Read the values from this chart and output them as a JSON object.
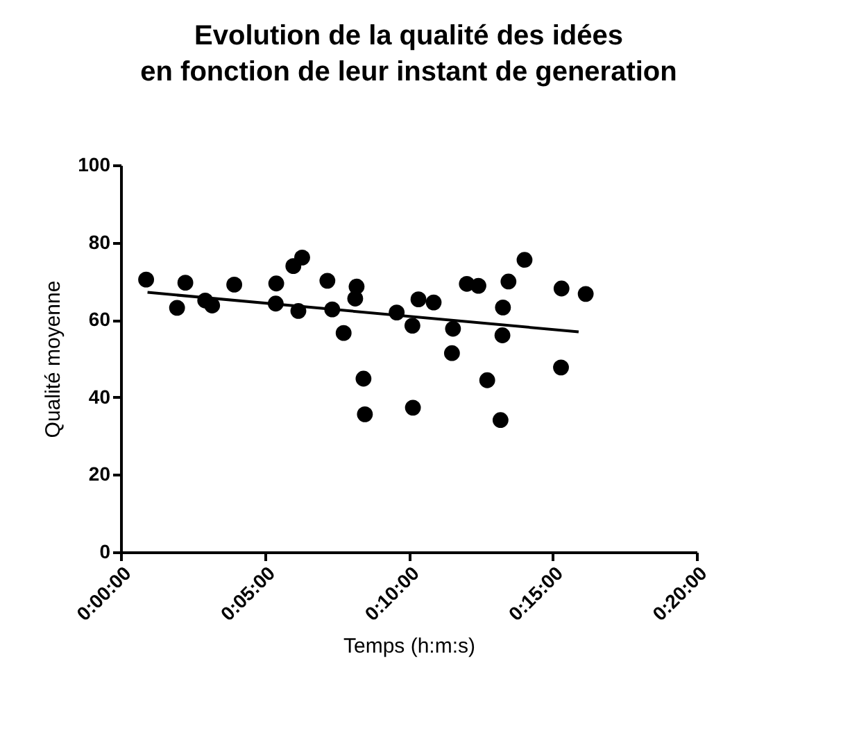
{
  "chart_data": {
    "type": "scatter",
    "title": "Evolution de la qualité des idées\nen fonction de leur instant de generation",
    "xlabel": "Temps (h:m:s)",
    "ylabel": "Qualité moyenne",
    "xlim": [
      0,
      0.3333
    ],
    "xticks": [
      {
        "value": 0,
        "label": "0:00:00"
      },
      {
        "value": 0.0833,
        "label": "0:05:00"
      },
      {
        "value": 0.1667,
        "label": "0:10:00"
      },
      {
        "value": 0.25,
        "label": "0:15:00"
      },
      {
        "value": 0.3333,
        "label": "0:20:00"
      }
    ],
    "ylim": [
      0,
      100
    ],
    "yticks": [
      0,
      20,
      40,
      60,
      80,
      100
    ],
    "series": [
      {
        "marker": "circle",
        "color": "#000000",
        "x": [
          0.0147,
          0.0326,
          0.0374,
          0.0489,
          0.0529,
          0.0657,
          0.09,
          0.0897,
          0.0999,
          0.105,
          0.1028,
          0.1196,
          0.1224,
          0.1365,
          0.1357,
          0.129,
          0.1405,
          0.1413,
          0.1597,
          0.1688,
          0.1723,
          0.1811,
          0.1691,
          0.2003,
          0.207,
          0.1923,
          0.1917,
          0.2121,
          0.2198,
          0.2212,
          0.2209,
          0.2244,
          0.2337,
          0.2551,
          0.2691,
          0.2548
        ],
        "values": [
          70.4,
          63.1,
          69.6,
          65.0,
          63.7,
          69.1,
          69.4,
          64.2,
          73.9,
          76.1,
          62.3,
          70.1,
          62.7,
          68.6,
          65.5,
          56.6,
          44.8,
          35.6,
          61.9,
          58.5,
          65.3,
          64.5,
          37.3,
          69.3,
          68.8,
          57.7,
          51.4,
          44.4,
          34.1,
          63.2,
          56.0,
          69.9,
          75.5,
          68.1,
          66.7,
          47.7
        ]
      },
      {
        "type": "line",
        "marker": "none",
        "color": "#000000",
        "x": [
          0.0155,
          0.265
        ],
        "values": [
          67.1,
          56.9
        ]
      }
    ]
  }
}
